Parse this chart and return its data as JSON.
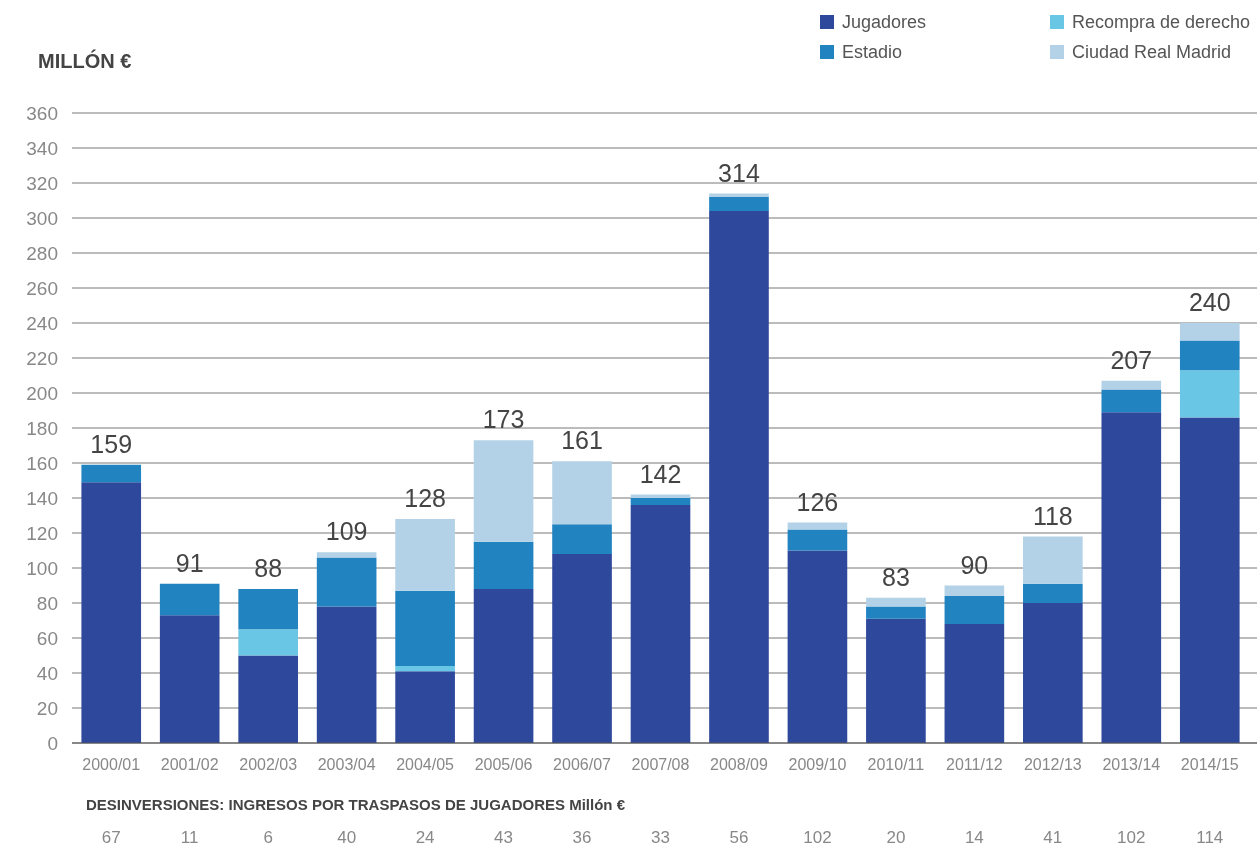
{
  "chart_data": {
    "type": "bar",
    "stacked": true,
    "ylabel": "MILLÓN €",
    "categories": [
      "2000/01",
      "2001/02",
      "2002/03",
      "2003/04",
      "2004/05",
      "2005/06",
      "2006/07",
      "2007/08",
      "2008/09",
      "2009/10",
      "2010/11",
      "2011/12",
      "2012/13",
      "2013/14",
      "2014/15"
    ],
    "series": [
      {
        "name": "Jugadores",
        "color": "#2e489b",
        "values": [
          149,
          73,
          50,
          78,
          41,
          88,
          108,
          136,
          304,
          110,
          71,
          68,
          80,
          189,
          186
        ]
      },
      {
        "name": "Recompra de derecho",
        "color": "#69c6e4",
        "values": [
          0,
          0,
          15,
          0,
          3,
          0,
          0,
          0,
          0,
          0,
          0,
          0,
          0,
          0,
          27
        ]
      },
      {
        "name": "Estadio",
        "color": "#2183c0",
        "values": [
          10,
          18,
          23,
          28,
          43,
          27,
          17,
          4,
          8,
          12,
          7,
          16,
          11,
          13,
          17
        ]
      },
      {
        "name": "Ciudad Real Madrid",
        "color": "#b3d2e8",
        "values": [
          0,
          0,
          0,
          3,
          41,
          58,
          36,
          2,
          2,
          4,
          5,
          6,
          27,
          5,
          10
        ]
      }
    ],
    "totals": [
      "159",
      "91",
      "88",
      "109",
      "128",
      "173",
      "161",
      "142",
      "314",
      "126",
      "83",
      "90",
      "118",
      "207",
      "240"
    ],
    "ylim": [
      0,
      360
    ],
    "yticks": [
      0,
      20,
      40,
      60,
      80,
      100,
      120,
      140,
      160,
      180,
      200,
      220,
      240,
      260,
      280,
      300,
      320,
      340,
      360
    ],
    "grid": "y",
    "legend": "top right",
    "annotations": [
      "DESINVERSIONES: INGRESOS POR TRASPASOS DE JUGADORES Millón €",
      "67",
      "11",
      "6",
      "40",
      "24",
      "43",
      "36",
      "33",
      "56",
      "102",
      "20",
      "14",
      "41",
      "102",
      "114"
    ]
  }
}
